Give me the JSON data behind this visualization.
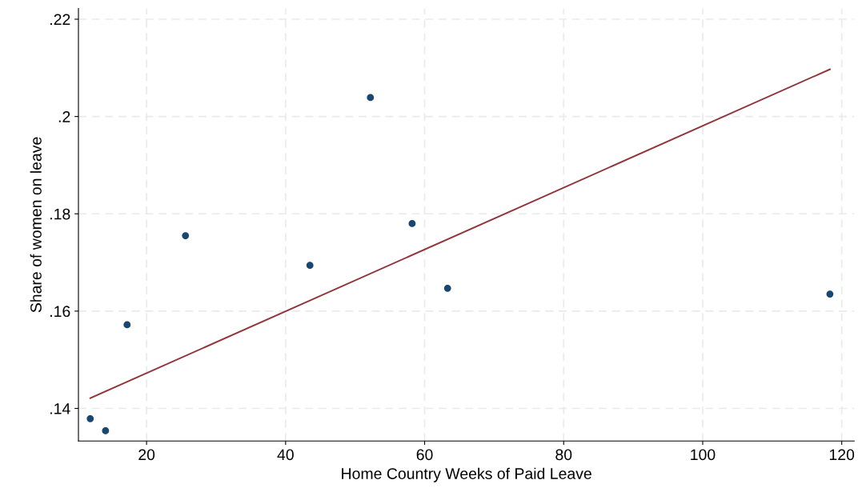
{
  "chart_data": {
    "type": "scatter",
    "xlabel": "Home Country Weeks of Paid Leave",
    "ylabel": "Share of women on leave",
    "xlim": [
      10.2,
      121.8
    ],
    "ylim": [
      0.1333,
      0.2222
    ],
    "xticks": [
      20,
      40,
      60,
      80,
      100,
      120
    ],
    "yticks": [
      {
        "value": 0.14,
        "label": ".14"
      },
      {
        "value": 0.16,
        "label": ".16"
      },
      {
        "value": 0.18,
        "label": ".18"
      },
      {
        "value": 0.2,
        "label": ".2"
      },
      {
        "value": 0.22,
        "label": ".22"
      }
    ],
    "grid": true,
    "series": [
      {
        "marker": "circle",
        "color": "#1a476f",
        "x": [
          11.9,
          14.1,
          17.2,
          25.6,
          43.5,
          52.2,
          58.2,
          63.3,
          118.3
        ],
        "values": [
          0.1379,
          0.1354,
          0.1572,
          0.1755,
          0.1694,
          0.2039,
          0.178,
          0.1647,
          0.1635
        ]
      },
      {
        "type": "line",
        "color": "#90353b",
        "x": [
          11.9,
          118.3
        ],
        "values": [
          0.1421,
          0.2097
        ]
      }
    ]
  }
}
